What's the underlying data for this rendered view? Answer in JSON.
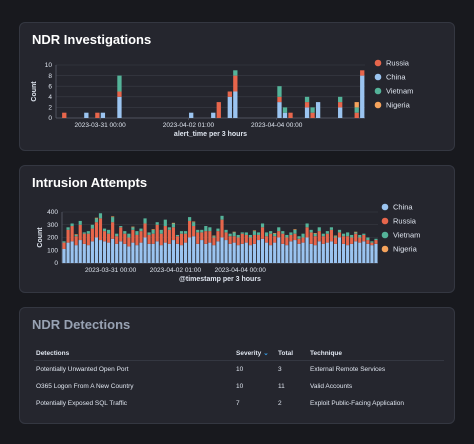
{
  "colors": {
    "Russia": "#e7664c",
    "China": "#9bc4f0",
    "Vietnam": "#54b399",
    "Nigeria": "#f5a35c",
    "grid": "#3a3d47",
    "axis": "#5a5e6b"
  },
  "chart_data": [
    {
      "title": "NDR Investigations",
      "type": "bar",
      "stacked": true,
      "xlabel": "alert_time per 3 hours",
      "ylabel": "Count",
      "ylim": [
        0,
        10
      ],
      "yticks": [
        0,
        2,
        4,
        6,
        8,
        10
      ],
      "x_tick_labels": [
        {
          "label": "2023-03-31 00:00",
          "index": 8
        },
        {
          "label": "2023-04-02 01:00",
          "index": 24
        },
        {
          "label": "2023-04-04 00:00",
          "index": 40
        }
      ],
      "legend": [
        "Russia",
        "China",
        "Vietnam",
        "Nigeria"
      ],
      "legend_position": "right",
      "grid": true,
      "series": [
        {
          "name": "China",
          "values": [
            0,
            0,
            0,
            0,
            0,
            1,
            0,
            0,
            1,
            0,
            0,
            4,
            0,
            0,
            0,
            0,
            0,
            0,
            0,
            0,
            0,
            0,
            0,
            0,
            1,
            0,
            0,
            0,
            1,
            0,
            0,
            4,
            5,
            0,
            0,
            0,
            0,
            0,
            0,
            0,
            3,
            1,
            0,
            0,
            0,
            2,
            0,
            3,
            0,
            0,
            0,
            2,
            0,
            0,
            0,
            8
          ]
        },
        {
          "name": "Russia",
          "values": [
            0,
            1,
            0,
            0,
            0,
            0,
            0,
            1,
            0,
            0,
            0,
            1,
            0,
            0,
            0,
            0,
            0,
            0,
            0,
            0,
            0,
            0,
            0,
            0,
            0,
            0,
            0,
            0,
            0,
            3,
            0,
            1,
            3,
            0,
            0,
            0,
            0,
            0,
            0,
            0,
            1,
            0,
            1,
            0,
            0,
            1,
            1,
            0,
            0,
            0,
            0,
            1,
            0,
            0,
            1,
            1
          ]
        },
        {
          "name": "Vietnam",
          "values": [
            0,
            0,
            0,
            0,
            0,
            0,
            0,
            0,
            0,
            0,
            0,
            3,
            0,
            0,
            0,
            0,
            0,
            0,
            0,
            0,
            0,
            0,
            0,
            0,
            0,
            0,
            0,
            0,
            0,
            0,
            0,
            0,
            1,
            0,
            0,
            0,
            0,
            0,
            0,
            0,
            2,
            1,
            0,
            0,
            0,
            1,
            1,
            0,
            0,
            0,
            0,
            1,
            0,
            0,
            1,
            0
          ]
        },
        {
          "name": "Nigeria",
          "values": [
            0,
            0,
            0,
            0,
            0,
            0,
            0,
            0,
            0,
            0,
            0,
            0,
            0,
            0,
            0,
            0,
            0,
            0,
            0,
            0,
            0,
            0,
            0,
            0,
            0,
            0,
            0,
            0,
            0,
            0,
            0,
            0,
            0,
            0,
            0,
            0,
            0,
            0,
            0,
            0,
            0,
            0,
            0,
            0,
            0,
            0,
            0,
            0,
            0,
            0,
            0,
            0,
            0,
            0,
            1,
            0
          ]
        }
      ]
    },
    {
      "title": "Intrusion Attempts",
      "type": "bar",
      "stacked": true,
      "xlabel": "@timestamp per 3 hours",
      "ylabel": "Count",
      "ylim": [
        0,
        400
      ],
      "yticks": [
        0,
        100,
        200,
        300,
        400
      ],
      "x_tick_labels": [
        {
          "label": "2023-03-31 00:00",
          "index": 12
        },
        {
          "label": "2023-04-02 01:00",
          "index": 28
        },
        {
          "label": "2023-04-04 00:00",
          "index": 44
        }
      ],
      "legend": [
        "China",
        "Russia",
        "Vietnam",
        "Nigeria"
      ],
      "legend_position": "right",
      "grid": true,
      "series": [
        {
          "name": "China",
          "values": [
            110,
            160,
            170,
            140,
            180,
            150,
            140,
            170,
            200,
            180,
            170,
            160,
            190,
            150,
            170,
            150,
            130,
            160,
            140,
            160,
            200,
            150,
            150,
            170,
            140,
            160,
            150,
            180,
            150,
            140,
            160,
            200,
            210,
            150,
            180,
            150,
            160,
            140,
            170,
            200,
            180,
            150,
            160,
            140,
            150,
            160,
            140,
            150,
            180,
            190,
            160,
            140,
            160,
            200,
            150,
            140,
            170,
            180,
            150,
            160,
            200,
            150,
            140,
            170,
            150,
            160,
            170,
            150,
            200,
            150,
            140,
            150,
            170,
            160,
            170,
            150,
            140,
            150
          ]
        },
        {
          "name": "Russia",
          "values": [
            50,
            100,
            120,
            70,
            120,
            80,
            90,
            100,
            120,
            170,
            80,
            70,
            130,
            60,
            110,
            80,
            70,
            100,
            80,
            90,
            110,
            70,
            80,
            130,
            90,
            130,
            110,
            100,
            60,
            90,
            70,
            130,
            80,
            90,
            60,
            100,
            90,
            60,
            80,
            140,
            60,
            60,
            50,
            60,
            80,
            60,
            60,
            70,
            40,
            90,
            50,
            90,
            50,
            50,
            80,
            60,
            50,
            50,
            40,
            40,
            80,
            90,
            70,
            80,
            60,
            70,
            90,
            50,
            40,
            60,
            70,
            50,
            60,
            40,
            50,
            30,
            20,
            30
          ]
        },
        {
          "name": "Vietnam",
          "values": [
            10,
            20,
            20,
            10,
            30,
            10,
            20,
            30,
            30,
            40,
            20,
            30,
            40,
            20,
            10,
            20,
            30,
            20,
            30,
            20,
            40,
            20,
            30,
            20,
            30,
            50,
            20,
            30,
            10,
            20,
            20,
            30,
            30,
            20,
            20,
            40,
            30,
            10,
            20,
            30,
            20,
            20,
            30,
            20,
            10,
            20,
            20,
            30,
            20,
            30,
            30,
            20,
            20,
            30,
            20,
            20,
            20,
            30,
            20,
            30,
            30,
            20,
            20,
            30,
            20,
            20,
            20,
            10,
            20,
            20,
            30,
            20,
            10,
            20,
            10,
            20,
            10,
            10
          ]
        },
        {
          "name": "Nigeria",
          "values": [
            0,
            0,
            0,
            5,
            0,
            0,
            0,
            0,
            5,
            0,
            0,
            0,
            5,
            0,
            0,
            0,
            0,
            5,
            0,
            0,
            0,
            0,
            5,
            0,
            0,
            0,
            0,
            5,
            0,
            0,
            0,
            0,
            5,
            0,
            0,
            0,
            0,
            5,
            0,
            0,
            0,
            0,
            5,
            0,
            0,
            0,
            0,
            5,
            0,
            0,
            0,
            0,
            5,
            0,
            0,
            0,
            0,
            5,
            0,
            0,
            0,
            0,
            5,
            0,
            0,
            0,
            0,
            5,
            0,
            0,
            0,
            0,
            5,
            0,
            0,
            0,
            0,
            0
          ]
        }
      ]
    },
    {
      "title": "NDR Detections",
      "type": "table",
      "columns": [
        "Detections",
        "Severity",
        "Total",
        "Technique"
      ],
      "sort_indicator": "⌄",
      "rows": [
        [
          "Potentially Unwanted Open Port",
          "10",
          "3",
          "External Remote Services"
        ],
        [
          "O365 Logon From A New Country",
          "10",
          "11",
          "Valid Accounts"
        ],
        [
          "Potentially Exposed SQL Traffic",
          "7",
          "2",
          "Exploit Public-Facing Application"
        ]
      ]
    }
  ]
}
